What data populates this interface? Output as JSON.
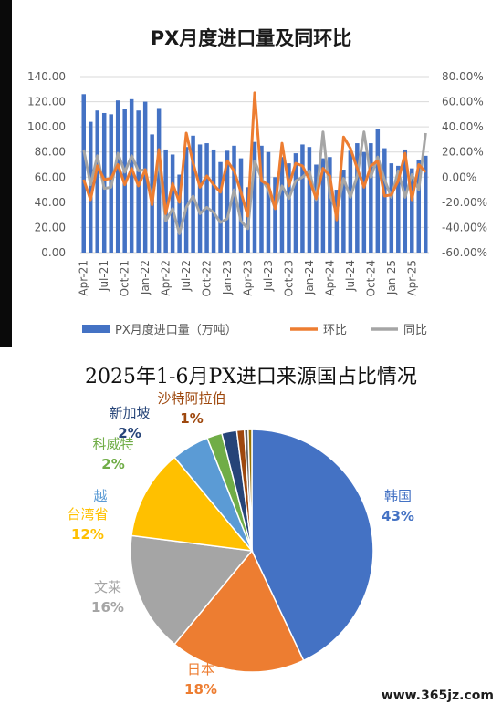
{
  "chart_data": [
    {
      "type": "bar",
      "title": "PX月度进口量及同环比",
      "x": [
        "Apr-21",
        "May-21",
        "Jun-21",
        "Jul-21",
        "Aug-21",
        "Sep-21",
        "Oct-21",
        "Nov-21",
        "Dec-21",
        "Jan-22",
        "Feb-22",
        "Mar-22",
        "Apr-22",
        "May-22",
        "Jun-22",
        "Jul-22",
        "Aug-22",
        "Sep-22",
        "Oct-22",
        "Nov-22",
        "Dec-22",
        "Jan-23",
        "Feb-23",
        "Mar-23",
        "Apr-23",
        "May-23",
        "Jun-23",
        "Jul-23",
        "Aug-23",
        "Sep-23",
        "Oct-23",
        "Nov-23",
        "Dec-23",
        "Jan-24",
        "Feb-24",
        "Mar-24",
        "Apr-24",
        "May-24",
        "Jun-24",
        "Jul-24",
        "Aug-24",
        "Sep-24",
        "Oct-24",
        "Nov-24",
        "Dec-24",
        "Jan-25",
        "Feb-25",
        "Mar-25",
        "Apr-25",
        "May-25",
        "Jun-25"
      ],
      "x_tick_labels": [
        "Apr-21",
        "Jul-21",
        "Oct-21",
        "Jan-22",
        "Apr-22",
        "Jul-22",
        "Oct-22",
        "Jan-23",
        "Apr-23",
        "Jul-23",
        "Oct-23",
        "Jan-24",
        "Apr-24",
        "Jul-24",
        "Oct-24",
        "Jan-25",
        "Apr-25"
      ],
      "y_left": {
        "ylim": [
          0,
          140
        ],
        "ticks": [
          "0.00",
          "20.00",
          "40.00",
          "60.00",
          "80.00",
          "100.00",
          "120.00",
          "140.00"
        ]
      },
      "y_right": {
        "ylim": [
          -60,
          80
        ],
        "ticks": [
          "-60.00%",
          "-40.00%",
          "-20.00%",
          "0.00%",
          "20.00%",
          "40.00%",
          "60.00%",
          "80.00%"
        ]
      },
      "grid": true,
      "legend_position": "bottom",
      "series": [
        {
          "name": "PX月度进口量（万吨）",
          "type": "bar",
          "axis": "left",
          "color": "#4472c4",
          "values": [
            126,
            104,
            113,
            111,
            110,
            121,
            114,
            122,
            113,
            120,
            94,
            115,
            82,
            78,
            62,
            84,
            93,
            86,
            87,
            82,
            72,
            81,
            85,
            75,
            52,
            88,
            85,
            80,
            60,
            76,
            71,
            79,
            86,
            84,
            70,
            75,
            76,
            50,
            66,
            81,
            87,
            80,
            87,
            98,
            83,
            71,
            69,
            82,
            67,
            74,
            77
          ]
        },
        {
          "name": "环比",
          "type": "line",
          "axis": "right",
          "color": "#ed7d31",
          "values": [
            -2,
            -18,
            9,
            -2,
            -1,
            10,
            -6,
            7,
            -7,
            6,
            -22,
            22,
            -29,
            -5,
            -20,
            35,
            11,
            -8,
            1,
            -6,
            -12,
            13,
            5,
            -12,
            -31,
            67,
            -3,
            -6,
            -25,
            27,
            -7,
            11,
            9,
            -2,
            -17,
            7,
            1,
            -34,
            32,
            23,
            7,
            -8,
            9,
            13,
            -15,
            -14,
            -3,
            19,
            -18,
            10,
            4
          ]
        },
        {
          "name": "同比",
          "type": "line",
          "axis": "right",
          "color": "#a5a5a5",
          "values": [
            22,
            -6,
            17,
            -9,
            -8,
            19,
            4,
            17,
            5,
            6,
            -18,
            13,
            -35,
            -25,
            -45,
            -24,
            -15,
            -29,
            -24,
            -28,
            -36,
            -33,
            -10,
            -35,
            -41,
            13,
            -1,
            -10,
            -25,
            -7,
            -17,
            -3,
            0,
            5,
            -18,
            36,
            -14,
            -28,
            -1,
            -16,
            1,
            36,
            0,
            16,
            -2,
            -16,
            5,
            -16,
            2,
            -10,
            35
          ]
        }
      ]
    },
    {
      "type": "pie",
      "title": "2025年1-6月PX进口来源国占比情况",
      "slices": [
        {
          "label": "韩国",
          "pct_label": "43%",
          "value": 43,
          "color": "#4472c4"
        },
        {
          "label": "日本",
          "pct_label": "18%",
          "value": 18,
          "color": "#ed7d31"
        },
        {
          "label": "文莱",
          "pct_label": "16%",
          "value": 16,
          "color": "#a5a5a5"
        },
        {
          "label": "台湾省",
          "pct_label": "12%",
          "value": 12,
          "color": "#ffc000"
        },
        {
          "label": "越",
          "pct_label": "",
          "value": 5,
          "color": "#5b9bd5"
        },
        {
          "label": "科威特",
          "pct_label": "2%",
          "value": 2,
          "color": "#70ad47"
        },
        {
          "label": "新加坡",
          "pct_label": "2%",
          "value": 2,
          "color": "#264478"
        },
        {
          "label": "沙特阿拉伯",
          "pct_label": "1%",
          "value": 1,
          "color": "#9e480e"
        },
        {
          "label": "",
          "pct_label": "",
          "value": 0.5,
          "color": "#636363"
        },
        {
          "label": "",
          "pct_label": "",
          "value": 0.5,
          "color": "#997300"
        }
      ]
    }
  ],
  "watermark": "www.365jz.com"
}
